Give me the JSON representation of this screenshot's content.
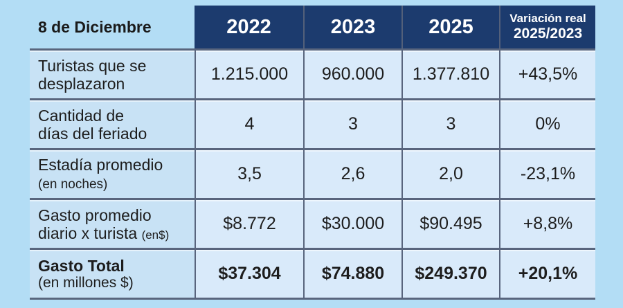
{
  "page": {
    "background": "#b3ddf5"
  },
  "colors": {
    "header_bg": "#1c3b6e",
    "header_text": "#ffffff",
    "label_cell_bg": "#c8e2f5",
    "data_cell_bg": "#d9eafa",
    "border": "#59657d",
    "text": "#1d1d1d"
  },
  "table": {
    "corner_label": "8 de Diciembre",
    "year_headers": [
      "2022",
      "2023",
      "2025"
    ],
    "variation_header": {
      "line1": "Variación real",
      "line2": "2025/2023"
    },
    "rows": [
      {
        "label_line1": "Turistas que se",
        "label_line2": "desplazaron",
        "label_small": "",
        "values": [
          "1.215.000",
          "960.000",
          "1.377.810",
          "+43,5%"
        ]
      },
      {
        "label_line1": "Cantidad de",
        "label_line2": "días del feriado",
        "label_small": "",
        "values": [
          "4",
          "3",
          "3",
          "0%"
        ]
      },
      {
        "label_line1": "Estadía promedio",
        "label_line2": "",
        "label_small": "(en noches)",
        "values": [
          "3,5",
          "2,6",
          "2,0",
          "-23,1%"
        ]
      },
      {
        "label_line1": "Gasto promedio",
        "label_line2": "diario x turista",
        "label_small": "(en$)",
        "values": [
          "$8.772",
          "$30.000",
          "$90.495",
          "+8,8%"
        ]
      },
      {
        "label_line1": "Gasto Total",
        "label_line2": "(en millones $)",
        "label_small": "",
        "values": [
          "$37.304",
          "$74.880",
          "$249.370",
          "+20,1%"
        ]
      }
    ]
  },
  "chart_data": {
    "type": "table",
    "title": "8 de Diciembre",
    "columns": [
      "2022",
      "2023",
      "2025",
      "Variación real 2025/2023"
    ],
    "rows": [
      {
        "label": "Turistas que se desplazaron",
        "values": [
          "1.215.000",
          "960.000",
          "1.377.810",
          "+43,5%"
        ]
      },
      {
        "label": "Cantidad de días del feriado",
        "values": [
          "4",
          "3",
          "3",
          "0%"
        ]
      },
      {
        "label": "Estadía promedio (en noches)",
        "values": [
          "3,5",
          "2,6",
          "2,0",
          "-23,1%"
        ]
      },
      {
        "label": "Gasto promedio diario x turista (en$)",
        "values": [
          "$8.772",
          "$30.000",
          "$90.495",
          "+8,8%"
        ]
      },
      {
        "label": "Gasto Total (en millones $)",
        "values": [
          "$37.304",
          "$74.880",
          "$249.370",
          "+20,1%"
        ]
      }
    ]
  }
}
